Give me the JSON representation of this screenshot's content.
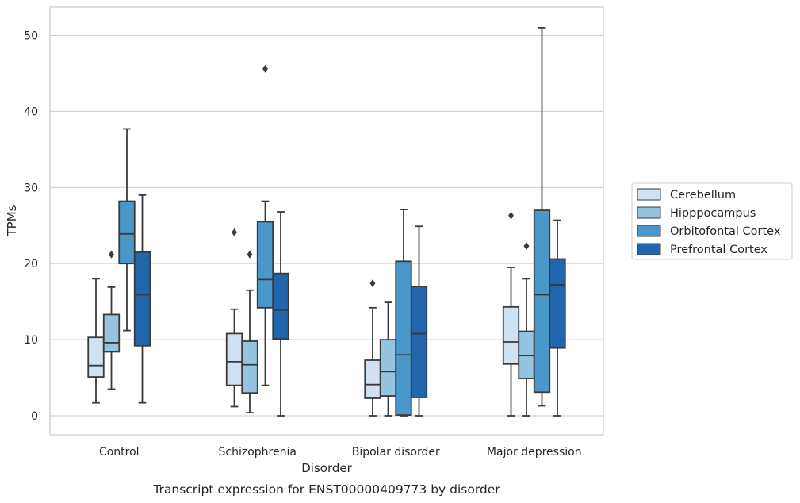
{
  "chart_data": {
    "type": "box",
    "caption": "Transcript expression for ENST00000409773 by disorder",
    "xlabel": "Disorder",
    "ylabel": "TPMs",
    "ylim": [
      -2.5,
      53.7
    ],
    "yticks": [
      0,
      10,
      20,
      30,
      40,
      50
    ],
    "grid": true,
    "legend_position": "right",
    "categories": [
      "Control",
      "Schizophrenia",
      "Bipolar disorder",
      "Major depression"
    ],
    "series": [
      {
        "name": "Cerebellum",
        "color": "#d0e1f2",
        "boxes": [
          {
            "whisker_low": 1.7,
            "q1": 5.1,
            "median": 6.6,
            "q3": 10.3,
            "whisker_high": 18.0,
            "outliers": []
          },
          {
            "whisker_low": 1.2,
            "q1": 4.0,
            "median": 7.1,
            "q3": 10.8,
            "whisker_high": 14.0,
            "outliers": [
              24.1
            ]
          },
          {
            "whisker_low": 0.0,
            "q1": 2.3,
            "median": 4.1,
            "q3": 7.3,
            "whisker_high": 14.2,
            "outliers": [
              17.4
            ]
          },
          {
            "whisker_low": 0.0,
            "q1": 6.8,
            "median": 9.7,
            "q3": 14.3,
            "whisker_high": 19.5,
            "outliers": [
              26.3
            ]
          }
        ]
      },
      {
        "name": "Hipppocampus",
        "color": "#94c4df",
        "boxes": [
          {
            "whisker_low": 3.5,
            "q1": 8.4,
            "median": 9.6,
            "q3": 13.3,
            "whisker_high": 16.9,
            "outliers": [
              21.2
            ]
          },
          {
            "whisker_low": 0.4,
            "q1": 3.0,
            "median": 6.7,
            "q3": 9.8,
            "whisker_high": 16.5,
            "outliers": [
              21.2
            ]
          },
          {
            "whisker_low": 0.0,
            "q1": 2.6,
            "median": 5.8,
            "q3": 10.0,
            "whisker_high": 14.9,
            "outliers": []
          },
          {
            "whisker_low": 0.0,
            "q1": 4.9,
            "median": 7.9,
            "q3": 11.1,
            "whisker_high": 18.0,
            "outliers": [
              22.3
            ]
          }
        ]
      },
      {
        "name": "Orbitofontal Cortex",
        "color": "#4a98c9",
        "boxes": [
          {
            "whisker_low": 11.2,
            "q1": 20.0,
            "median": 23.9,
            "q3": 28.2,
            "whisker_high": 37.7,
            "outliers": []
          },
          {
            "whisker_low": 4.0,
            "q1": 14.2,
            "median": 17.9,
            "q3": 25.5,
            "whisker_high": 28.2,
            "outliers": [
              45.6
            ]
          },
          {
            "whisker_low": 0.0,
            "q1": 0.1,
            "median": 8.0,
            "q3": 20.3,
            "whisker_high": 27.1,
            "outliers": []
          },
          {
            "whisker_low": 1.3,
            "q1": 3.1,
            "median": 15.9,
            "q3": 27.0,
            "whisker_high": 51.0,
            "outliers": []
          }
        ]
      },
      {
        "name": "Prefrontal Cortex",
        "color": "#2166ac",
        "boxes": [
          {
            "whisker_low": 1.7,
            "q1": 9.2,
            "median": 15.9,
            "q3": 21.5,
            "whisker_high": 29.0,
            "outliers": []
          },
          {
            "whisker_low": 0.0,
            "q1": 10.1,
            "median": 13.9,
            "q3": 18.7,
            "whisker_high": 26.8,
            "outliers": []
          },
          {
            "whisker_low": 0.0,
            "q1": 2.4,
            "median": 10.8,
            "q3": 17.0,
            "whisker_high": 24.9,
            "outliers": []
          },
          {
            "whisker_low": 0.0,
            "q1": 8.9,
            "median": 17.2,
            "q3": 20.6,
            "whisker_high": 25.7,
            "outliers": []
          }
        ]
      }
    ]
  }
}
